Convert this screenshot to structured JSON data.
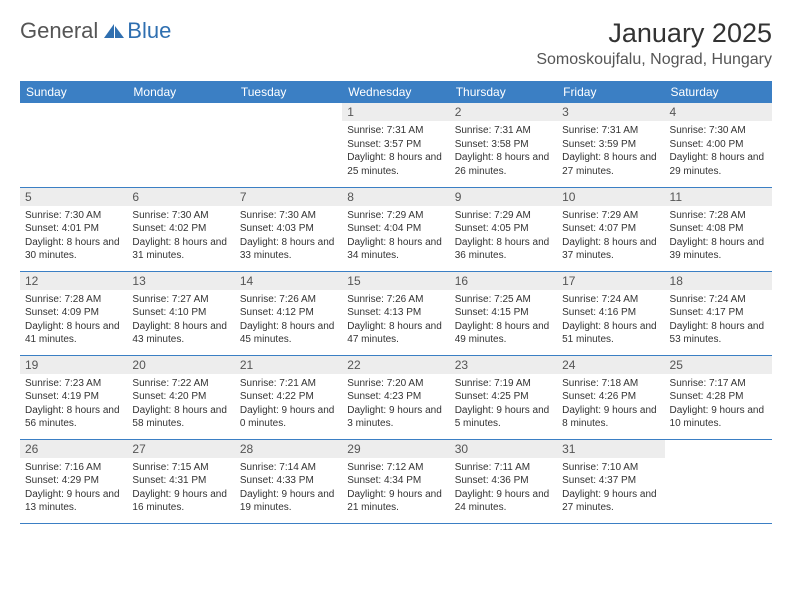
{
  "logo": {
    "text1": "General",
    "text2": "Blue"
  },
  "header": {
    "month_title": "January 2025",
    "location": "Somoskoujfalu, Nograd, Hungary"
  },
  "colors": {
    "header_bg": "#3b7fc4",
    "header_text": "#ffffff",
    "daynum_bg": "#ededed",
    "daynum_text": "#555555",
    "body_text": "#333333",
    "border": "#3b7fc4",
    "logo_gray": "#555555",
    "logo_blue": "#2f6fb0"
  },
  "weekdays": [
    "Sunday",
    "Monday",
    "Tuesday",
    "Wednesday",
    "Thursday",
    "Friday",
    "Saturday"
  ],
  "weeks": [
    [
      null,
      null,
      null,
      {
        "n": "1",
        "sr": "7:31 AM",
        "ss": "3:57 PM",
        "dl": "8 hours and 25 minutes."
      },
      {
        "n": "2",
        "sr": "7:31 AM",
        "ss": "3:58 PM",
        "dl": "8 hours and 26 minutes."
      },
      {
        "n": "3",
        "sr": "7:31 AM",
        "ss": "3:59 PM",
        "dl": "8 hours and 27 minutes."
      },
      {
        "n": "4",
        "sr": "7:30 AM",
        "ss": "4:00 PM",
        "dl": "8 hours and 29 minutes."
      }
    ],
    [
      {
        "n": "5",
        "sr": "7:30 AM",
        "ss": "4:01 PM",
        "dl": "8 hours and 30 minutes."
      },
      {
        "n": "6",
        "sr": "7:30 AM",
        "ss": "4:02 PM",
        "dl": "8 hours and 31 minutes."
      },
      {
        "n": "7",
        "sr": "7:30 AM",
        "ss": "4:03 PM",
        "dl": "8 hours and 33 minutes."
      },
      {
        "n": "8",
        "sr": "7:29 AM",
        "ss": "4:04 PM",
        "dl": "8 hours and 34 minutes."
      },
      {
        "n": "9",
        "sr": "7:29 AM",
        "ss": "4:05 PM",
        "dl": "8 hours and 36 minutes."
      },
      {
        "n": "10",
        "sr": "7:29 AM",
        "ss": "4:07 PM",
        "dl": "8 hours and 37 minutes."
      },
      {
        "n": "11",
        "sr": "7:28 AM",
        "ss": "4:08 PM",
        "dl": "8 hours and 39 minutes."
      }
    ],
    [
      {
        "n": "12",
        "sr": "7:28 AM",
        "ss": "4:09 PM",
        "dl": "8 hours and 41 minutes."
      },
      {
        "n": "13",
        "sr": "7:27 AM",
        "ss": "4:10 PM",
        "dl": "8 hours and 43 minutes."
      },
      {
        "n": "14",
        "sr": "7:26 AM",
        "ss": "4:12 PM",
        "dl": "8 hours and 45 minutes."
      },
      {
        "n": "15",
        "sr": "7:26 AM",
        "ss": "4:13 PM",
        "dl": "8 hours and 47 minutes."
      },
      {
        "n": "16",
        "sr": "7:25 AM",
        "ss": "4:15 PM",
        "dl": "8 hours and 49 minutes."
      },
      {
        "n": "17",
        "sr": "7:24 AM",
        "ss": "4:16 PM",
        "dl": "8 hours and 51 minutes."
      },
      {
        "n": "18",
        "sr": "7:24 AM",
        "ss": "4:17 PM",
        "dl": "8 hours and 53 minutes."
      }
    ],
    [
      {
        "n": "19",
        "sr": "7:23 AM",
        "ss": "4:19 PM",
        "dl": "8 hours and 56 minutes."
      },
      {
        "n": "20",
        "sr": "7:22 AM",
        "ss": "4:20 PM",
        "dl": "8 hours and 58 minutes."
      },
      {
        "n": "21",
        "sr": "7:21 AM",
        "ss": "4:22 PM",
        "dl": "9 hours and 0 minutes."
      },
      {
        "n": "22",
        "sr": "7:20 AM",
        "ss": "4:23 PM",
        "dl": "9 hours and 3 minutes."
      },
      {
        "n": "23",
        "sr": "7:19 AM",
        "ss": "4:25 PM",
        "dl": "9 hours and 5 minutes."
      },
      {
        "n": "24",
        "sr": "7:18 AM",
        "ss": "4:26 PM",
        "dl": "9 hours and 8 minutes."
      },
      {
        "n": "25",
        "sr": "7:17 AM",
        "ss": "4:28 PM",
        "dl": "9 hours and 10 minutes."
      }
    ],
    [
      {
        "n": "26",
        "sr": "7:16 AM",
        "ss": "4:29 PM",
        "dl": "9 hours and 13 minutes."
      },
      {
        "n": "27",
        "sr": "7:15 AM",
        "ss": "4:31 PM",
        "dl": "9 hours and 16 minutes."
      },
      {
        "n": "28",
        "sr": "7:14 AM",
        "ss": "4:33 PM",
        "dl": "9 hours and 19 minutes."
      },
      {
        "n": "29",
        "sr": "7:12 AM",
        "ss": "4:34 PM",
        "dl": "9 hours and 21 minutes."
      },
      {
        "n": "30",
        "sr": "7:11 AM",
        "ss": "4:36 PM",
        "dl": "9 hours and 24 minutes."
      },
      {
        "n": "31",
        "sr": "7:10 AM",
        "ss": "4:37 PM",
        "dl": "9 hours and 27 minutes."
      },
      null
    ]
  ],
  "labels": {
    "sunrise": "Sunrise:",
    "sunset": "Sunset:",
    "daylight": "Daylight:"
  }
}
